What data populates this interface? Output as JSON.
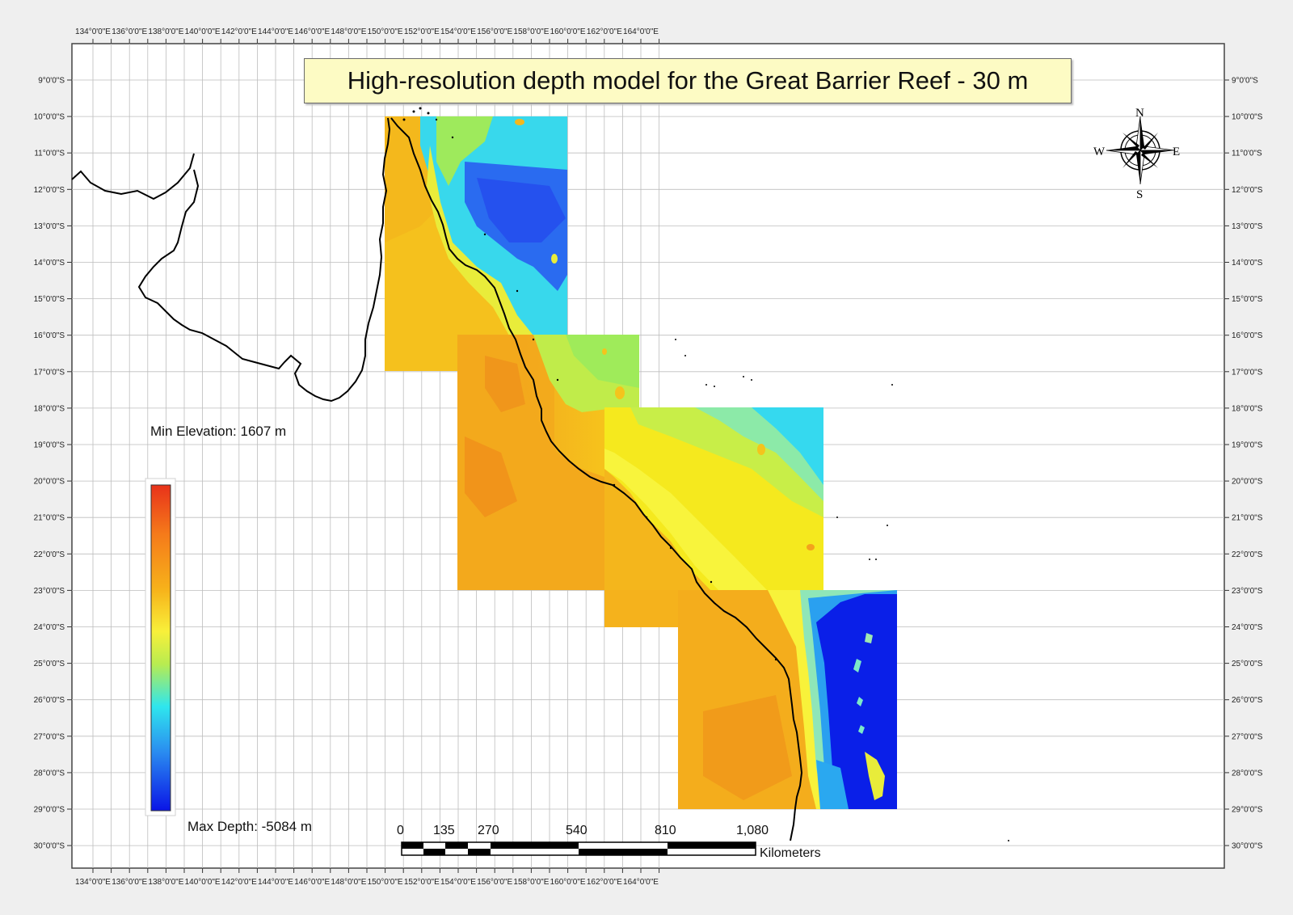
{
  "title": "High-resolution depth model for the Great Barrier Reef - 30 m",
  "longitude_labels": [
    "134°0'0\"E",
    "136°0'0\"E",
    "138°0'0\"E",
    "140°0'0\"E",
    "142°0'0\"E",
    "144°0'0\"E",
    "146°0'0\"E",
    "148°0'0\"E",
    "150°0'0\"E",
    "152°0'0\"E",
    "154°0'0\"E",
    "156°0'0\"E",
    "158°0'0\"E",
    "160°0'0\"E",
    "162°0'0\"E",
    "164°0'0\"E"
  ],
  "latitude_labels": [
    "9°0'0\"S",
    "10°0'0\"S",
    "11°0'0\"S",
    "12°0'0\"S",
    "13°0'0\"S",
    "14°0'0\"S",
    "15°0'0\"S",
    "16°0'0\"S",
    "17°0'0\"S",
    "18°0'0\"S",
    "19°0'0\"S",
    "20°0'0\"S",
    "21°0'0\"S",
    "22°0'0\"S",
    "23°0'0\"S",
    "24°0'0\"S",
    "25°0'0\"S",
    "26°0'0\"S",
    "27°0'0\"S",
    "28°0'0\"S",
    "29°0'0\"S",
    "30°0'0\"S"
  ],
  "legend": {
    "min_elevation": "Min Elevation: 1607 m",
    "max_depth": "Max Depth: -5084 m",
    "colors": [
      "#e8321a",
      "#f57a1a",
      "#f7b21a",
      "#f5e81a",
      "#f8f83a",
      "#b8ec50",
      "#2fe6ee",
      "#2a9cf0",
      "#1f4af0",
      "#0a14e6"
    ]
  },
  "scale_bar": {
    "labels": [
      "0",
      "135",
      "270",
      "540",
      "810",
      "1,080"
    ],
    "unit": "Kilometers"
  },
  "compass": {
    "n": "N",
    "s": "S",
    "e": "E",
    "w": "W"
  },
  "colors": {
    "land": "#f6c51f",
    "shallow": "#f8f23a",
    "deep": "#0a20e8",
    "frame": "#ffffff",
    "grid": "#b9b9b9"
  }
}
